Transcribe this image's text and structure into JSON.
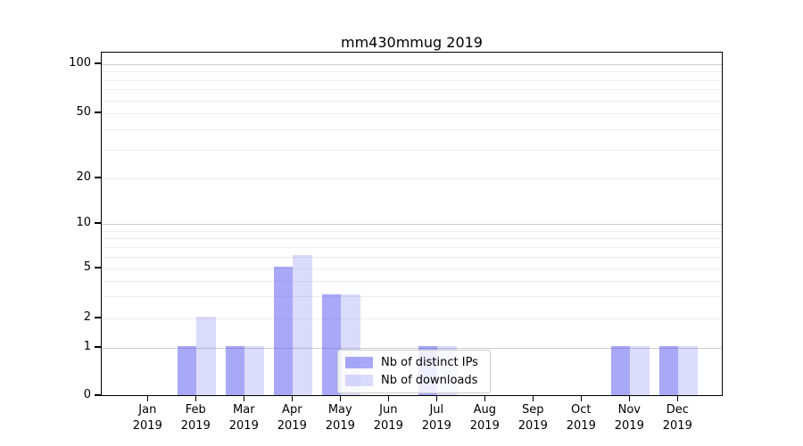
{
  "title": "mm430mmug 2019",
  "chart_data": {
    "type": "bar",
    "title": "mm430mmug 2019",
    "categories": [
      "Jan 2019",
      "Feb 2019",
      "Mar 2019",
      "Apr 2019",
      "May 2019",
      "Jun 2019",
      "Jul 2019",
      "Aug 2019",
      "Sep 2019",
      "Oct 2019",
      "Nov 2019",
      "Dec 2019"
    ],
    "series": [
      {
        "name": "Nb of distinct IPs",
        "base_color": "#6464f0",
        "alpha": 0.56,
        "flat_color": "#a8a8f7",
        "values": [
          0,
          1,
          1,
          5,
          3,
          0,
          1,
          0,
          0,
          0,
          1,
          1
        ]
      },
      {
        "name": "Nb of downloads",
        "base_color": "#6464f0",
        "alpha": 0.23,
        "flat_color": "#dbdbf8",
        "values": [
          0,
          2,
          1,
          6,
          3,
          0,
          1,
          0,
          0,
          0,
          1,
          1
        ]
      }
    ],
    "xlabel": "",
    "ylabel": "",
    "ylim": [
      0,
      100
    ],
    "y_scale": "log-above-1-linear-below-1",
    "y_tick_labels": [
      0,
      1,
      2,
      5,
      10,
      20,
      50,
      100
    ],
    "y_gridlines_major": [
      1,
      10,
      100
    ],
    "y_gridlines_minor": [
      2,
      3,
      4,
      5,
      6,
      7,
      8,
      9,
      20,
      30,
      40,
      50,
      60,
      70,
      80,
      90
    ],
    "grid": "on",
    "legend_position": "inside lower-center"
  },
  "colors": {
    "axis": "#000000",
    "gridline_major": "#cccccc",
    "gridline_minor": "#ededed",
    "legend_border": "#cccccc"
  }
}
